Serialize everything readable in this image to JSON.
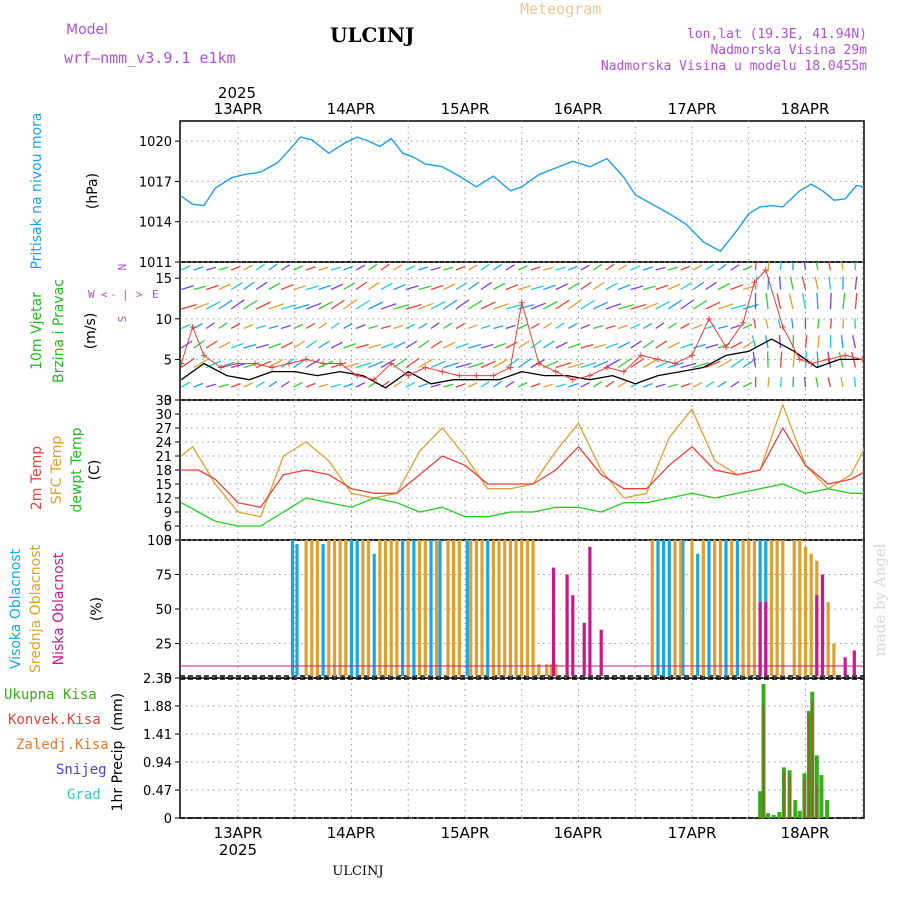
{
  "header": {
    "model_label": "Model",
    "model_name": "wrf–nmm_v3.9.1  e1km",
    "station": "ULCINJ",
    "meteogram": "Meteogram",
    "lonlat": "lon,lat (19.3E, 41.94N)",
    "elevation": "Nadmorska Visina 29m",
    "model_elevation": "Nadmorska Visina u modelu 18.0455m"
  },
  "footer": {
    "station": "ULCINJ",
    "watermark": "made by Angel"
  },
  "time_axis": {
    "year": "2025",
    "days": [
      "13APR",
      "14APR",
      "15APR",
      "16APR",
      "17APR",
      "18APR"
    ]
  },
  "colors": {
    "pressure": "#1ea0e6",
    "wind_speed": "#000000",
    "wind_gust": "#e8413c",
    "temp2m": "#e8413c",
    "sfc_temp": "#e0a030",
    "dewpoint": "#22cc22",
    "cloud_high": "#18a8e0",
    "cloud_mid": "#e0a030",
    "cloud_low": "#c8188c",
    "precip_total": "#3aaa1e",
    "precip_conv": "#e8413c",
    "precip_frozen": "#e07a30",
    "snow": "#4444dd",
    "hail": "#33cccc"
  },
  "chart_data": [
    {
      "type": "line",
      "title": "",
      "ylabel_lines": [
        "Pritisak na nivou mora"
      ],
      "unit": "(hPa)",
      "yticks": [
        "1020",
        "1017",
        "1014",
        "1011"
      ],
      "ylim": [
        1011,
        1021.5
      ],
      "x_unit_days_from": "2025-04-12T12",
      "series": [
        {
          "x": [
            0,
            0.1,
            0.2,
            0.3,
            0.45,
            0.55,
            0.7,
            0.85,
            1.0,
            1.05,
            1.15,
            1.3,
            1.45,
            1.55,
            1.65,
            1.75,
            1.85,
            1.95,
            2.05,
            2.15,
            2.3,
            2.45,
            2.6,
            2.75,
            2.9,
            3.0,
            3.15,
            3.3,
            3.45,
            3.6,
            3.75,
            3.9,
            4.0,
            4.15,
            4.3,
            4.45,
            4.6,
            4.75,
            4.9,
            5.0,
            5.1,
            5.2,
            5.3,
            5.45,
            5.55,
            5.65,
            5.75,
            5.85,
            5.95,
            6.05
          ],
          "values": [
            1015.9,
            1015.3,
            1015.2,
            1016.5,
            1017.3,
            1017.5,
            1017.7,
            1018.4,
            1019.8,
            1020.3,
            1020.1,
            1019.1,
            1019.9,
            1020.3,
            1020.0,
            1019.6,
            1020.2,
            1019.1,
            1018.8,
            1018.3,
            1018.1,
            1017.4,
            1016.6,
            1017.4,
            1016.3,
            1016.6,
            1017.5,
            1018.0,
            1018.5,
            1018.1,
            1018.7,
            1017.3,
            1016.0,
            1015.3,
            1014.6,
            1013.8,
            1012.5,
            1011.8,
            1013.4,
            1014.6,
            1015.1,
            1015.2,
            1015.1,
            1016.3,
            1016.8,
            1016.3,
            1015.6,
            1015.7,
            1016.7,
            1016.5
          ]
        }
      ]
    },
    {
      "type": "line",
      "title": "",
      "ylabel_lines": [
        "10m Vjetar",
        "Brzina i Pravac"
      ],
      "unit": "(m/s)",
      "compass_labels": [
        "N",
        "W",
        "E",
        "S",
        "<",
        "-",
        "|",
        ">"
      ],
      "yticks": [
        "15",
        "10",
        "5",
        "0"
      ],
      "ylim": [
        0,
        17
      ],
      "series": [
        {
          "name": "speed",
          "x": [
            0,
            0.2,
            0.4,
            0.6,
            0.8,
            1.0,
            1.2,
            1.4,
            1.6,
            1.8,
            2.0,
            2.2,
            2.4,
            2.6,
            2.8,
            3.0,
            3.2,
            3.4,
            3.6,
            3.8,
            4.0,
            4.2,
            4.4,
            4.6,
            4.8,
            5.0,
            5.2,
            5.4,
            5.6,
            5.8,
            6.0
          ],
          "values": [
            2.5,
            4.5,
            3.0,
            2.5,
            3.5,
            3.5,
            3.0,
            3.5,
            3.0,
            1.5,
            3.5,
            2.0,
            2.5,
            2.5,
            2.5,
            3.5,
            3.0,
            3.0,
            2.5,
            3.0,
            2.0,
            3.0,
            3.5,
            4.0,
            5.5,
            6.0,
            7.5,
            6.0,
            4.0,
            5.0,
            5.0
          ]
        },
        {
          "name": "gust",
          "x": [
            0,
            0.1,
            0.2,
            0.35,
            0.5,
            0.65,
            0.8,
            0.95,
            1.1,
            1.25,
            1.4,
            1.55,
            1.7,
            1.85,
            2.0,
            2.15,
            2.3,
            2.45,
            2.6,
            2.75,
            2.9,
            3.0,
            3.15,
            3.3,
            3.45,
            3.6,
            3.75,
            3.9,
            4.05,
            4.2,
            4.35,
            4.5,
            4.65,
            4.8,
            4.95,
            5.05,
            5.15,
            5.3,
            5.45,
            5.55,
            5.7,
            5.85,
            6.0
          ],
          "values": [
            4.5,
            9.0,
            5.5,
            4.0,
            4.5,
            4.5,
            4.0,
            4.5,
            5.0,
            4.5,
            4.5,
            3.0,
            2.5,
            4.5,
            3.0,
            4.0,
            3.5,
            3.0,
            3.0,
            3.0,
            4.0,
            12.0,
            4.5,
            3.5,
            2.5,
            3.0,
            4.0,
            3.5,
            5.5,
            5.0,
            4.5,
            5.5,
            10.0,
            6.5,
            9.5,
            14.5,
            16.0,
            9.0,
            5.0,
            4.5,
            5.0,
            5.5,
            5.0
          ]
        }
      ]
    },
    {
      "type": "line",
      "title": "",
      "ylabel_lines": [
        "2m Temp",
        "SFC Temp",
        "dewpt Temp"
      ],
      "unit": "(C)",
      "yticks": [
        "33",
        "30",
        "27",
        "24",
        "21",
        "18",
        "15",
        "12",
        "9",
        "6",
        "3"
      ],
      "ylim": [
        3,
        33
      ],
      "series": [
        {
          "name": "2m Temp",
          "x": [
            0,
            0.15,
            0.3,
            0.5,
            0.7,
            0.9,
            1.1,
            1.3,
            1.5,
            1.7,
            1.9,
            2.1,
            2.3,
            2.5,
            2.7,
            2.9,
            3.1,
            3.3,
            3.5,
            3.7,
            3.9,
            4.1,
            4.3,
            4.5,
            4.7,
            4.9,
            5.1,
            5.3,
            5.5,
            5.7,
            5.9,
            6.05
          ],
          "values": [
            18,
            18,
            16,
            11,
            10,
            17,
            18,
            17,
            14,
            13,
            13,
            17,
            21,
            19,
            15,
            15,
            15,
            18,
            23,
            17,
            14,
            14,
            19,
            23,
            18,
            17,
            18,
            27,
            19,
            15,
            16,
            18
          ]
        },
        {
          "name": "SFC Temp",
          "x": [
            0,
            0.1,
            0.3,
            0.5,
            0.7,
            0.9,
            1.1,
            1.3,
            1.5,
            1.7,
            1.9,
            2.1,
            2.3,
            2.5,
            2.7,
            2.9,
            3.1,
            3.3,
            3.5,
            3.7,
            3.9,
            4.1,
            4.3,
            4.5,
            4.7,
            4.9,
            5.1,
            5.3,
            5.5,
            5.7,
            5.9,
            6.05
          ],
          "values": [
            21,
            23,
            15,
            9,
            8,
            21,
            24,
            20,
            13,
            12,
            13,
            22,
            27,
            21,
            14,
            14,
            15,
            22,
            28,
            18,
            12,
            13,
            25,
            31,
            20,
            17,
            18,
            32,
            19,
            14,
            17,
            24
          ]
        },
        {
          "name": "dewpt Temp",
          "x": [
            0,
            0.15,
            0.3,
            0.5,
            0.7,
            0.9,
            1.1,
            1.3,
            1.5,
            1.7,
            1.9,
            2.1,
            2.3,
            2.5,
            2.7,
            2.9,
            3.1,
            3.3,
            3.5,
            3.7,
            3.9,
            4.1,
            4.3,
            4.5,
            4.7,
            4.9,
            5.1,
            5.3,
            5.5,
            5.7,
            5.9,
            6.05
          ],
          "values": [
            11,
            9,
            7,
            6,
            6,
            9,
            12,
            11,
            10,
            12,
            11,
            9,
            10,
            8,
            8,
            9,
            9,
            10,
            10,
            9,
            11,
            11,
            12,
            13,
            12,
            13,
            14,
            15,
            13,
            14,
            13,
            13
          ]
        }
      ]
    },
    {
      "type": "bar",
      "title": "",
      "ylabel_lines": [
        "Visoka Oblacnost",
        "Srednja Oblacnost",
        "Niska Oblacnost"
      ],
      "unit": "(%)",
      "yticks": [
        "100",
        "75",
        "50",
        "25",
        "0"
      ],
      "ylim": [
        0,
        100
      ],
      "series": [
        {
          "name": "Visoka Oblacnost",
          "x": [
            0.98,
            1.02,
            1.25,
            1.5,
            1.55,
            1.7,
            1.95,
            2.05,
            2.2,
            2.28,
            2.52,
            2.7,
            4.2,
            4.25,
            4.3,
            4.42,
            4.55,
            4.65,
            4.8,
            4.9,
            5.1,
            5.15
          ],
          "values": [
            100,
            97,
            97,
            100,
            100,
            90,
            100,
            100,
            100,
            100,
            100,
            100,
            100,
            100,
            100,
            100,
            90,
            100,
            100,
            100,
            100,
            100
          ]
        },
        {
          "name": "Srednja Oblacnost",
          "x": [
            1.1,
            1.15,
            1.2,
            1.3,
            1.35,
            1.4,
            1.45,
            1.6,
            1.65,
            1.75,
            1.8,
            1.85,
            1.9,
            2.0,
            2.1,
            2.15,
            2.25,
            2.35,
            2.4,
            2.45,
            2.55,
            2.6,
            2.65,
            2.75,
            2.8,
            2.85,
            2.9,
            2.95,
            3.0,
            3.05,
            3.1,
            3.15,
            3.22,
            3.26,
            3.3,
            4.15,
            4.35,
            4.4,
            4.5,
            4.6,
            4.7,
            4.75,
            4.85,
            4.95,
            5.0,
            5.05,
            5.2,
            5.25,
            5.3,
            5.4,
            5.45,
            5.5,
            5.55,
            5.6,
            5.65,
            5.7,
            5.75
          ],
          "values": [
            100,
            100,
            100,
            100,
            100,
            100,
            100,
            100,
            100,
            100,
            100,
            100,
            100,
            100,
            100,
            100,
            100,
            100,
            100,
            100,
            100,
            100,
            100,
            100,
            100,
            100,
            100,
            100,
            100,
            100,
            100,
            10,
            10,
            10,
            10,
            100,
            100,
            100,
            100,
            100,
            100,
            100,
            100,
            100,
            100,
            100,
            100,
            100,
            100,
            100,
            100,
            95,
            90,
            85,
            75,
            55,
            25
          ]
        },
        {
          "name": "Niska Oblacnost",
          "x": [
            3.28,
            3.4,
            3.45,
            3.55,
            3.6,
            3.7,
            5.1,
            5.15,
            5.6,
            5.65,
            5.85,
            5.93
          ],
          "values": [
            80,
            75,
            60,
            40,
            95,
            35,
            55,
            55,
            60,
            75,
            15,
            20
          ]
        }
      ]
    },
    {
      "type": "bar",
      "title": "",
      "ylabel_lines": [
        "1hr Precip"
      ],
      "unit": "(mm)",
      "legend": [
        "Ukupna Kisa",
        "Konvek.Kisa",
        "Zaledj.Kisa",
        "Snijeg",
        "Grad"
      ],
      "yticks": [
        "2.35",
        "1.88",
        "1.41",
        "0.94",
        "0.47",
        "0"
      ],
      "ylim": [
        0,
        2.35
      ],
      "series": [
        {
          "name": "Ukupna Kisa",
          "x": [
            5.1,
            5.13,
            5.17,
            5.22,
            5.27,
            5.31,
            5.36,
            5.41,
            5.45,
            5.49,
            5.53,
            5.56,
            5.6,
            5.64,
            5.69
          ],
          "values": [
            0.45,
            2.25,
            0.08,
            0.05,
            0.1,
            0.85,
            0.8,
            0.3,
            0.12,
            0.75,
            1.8,
            2.12,
            1.05,
            0.72,
            0.3
          ]
        },
        {
          "name": "Konvek.Kisa",
          "x": [
            5.13,
            5.31,
            5.36,
            5.49,
            5.53,
            5.56,
            5.6
          ],
          "values": [
            1.9,
            0.75,
            0.7,
            0.65,
            1.75,
            1.95,
            0.55
          ]
        }
      ]
    }
  ]
}
